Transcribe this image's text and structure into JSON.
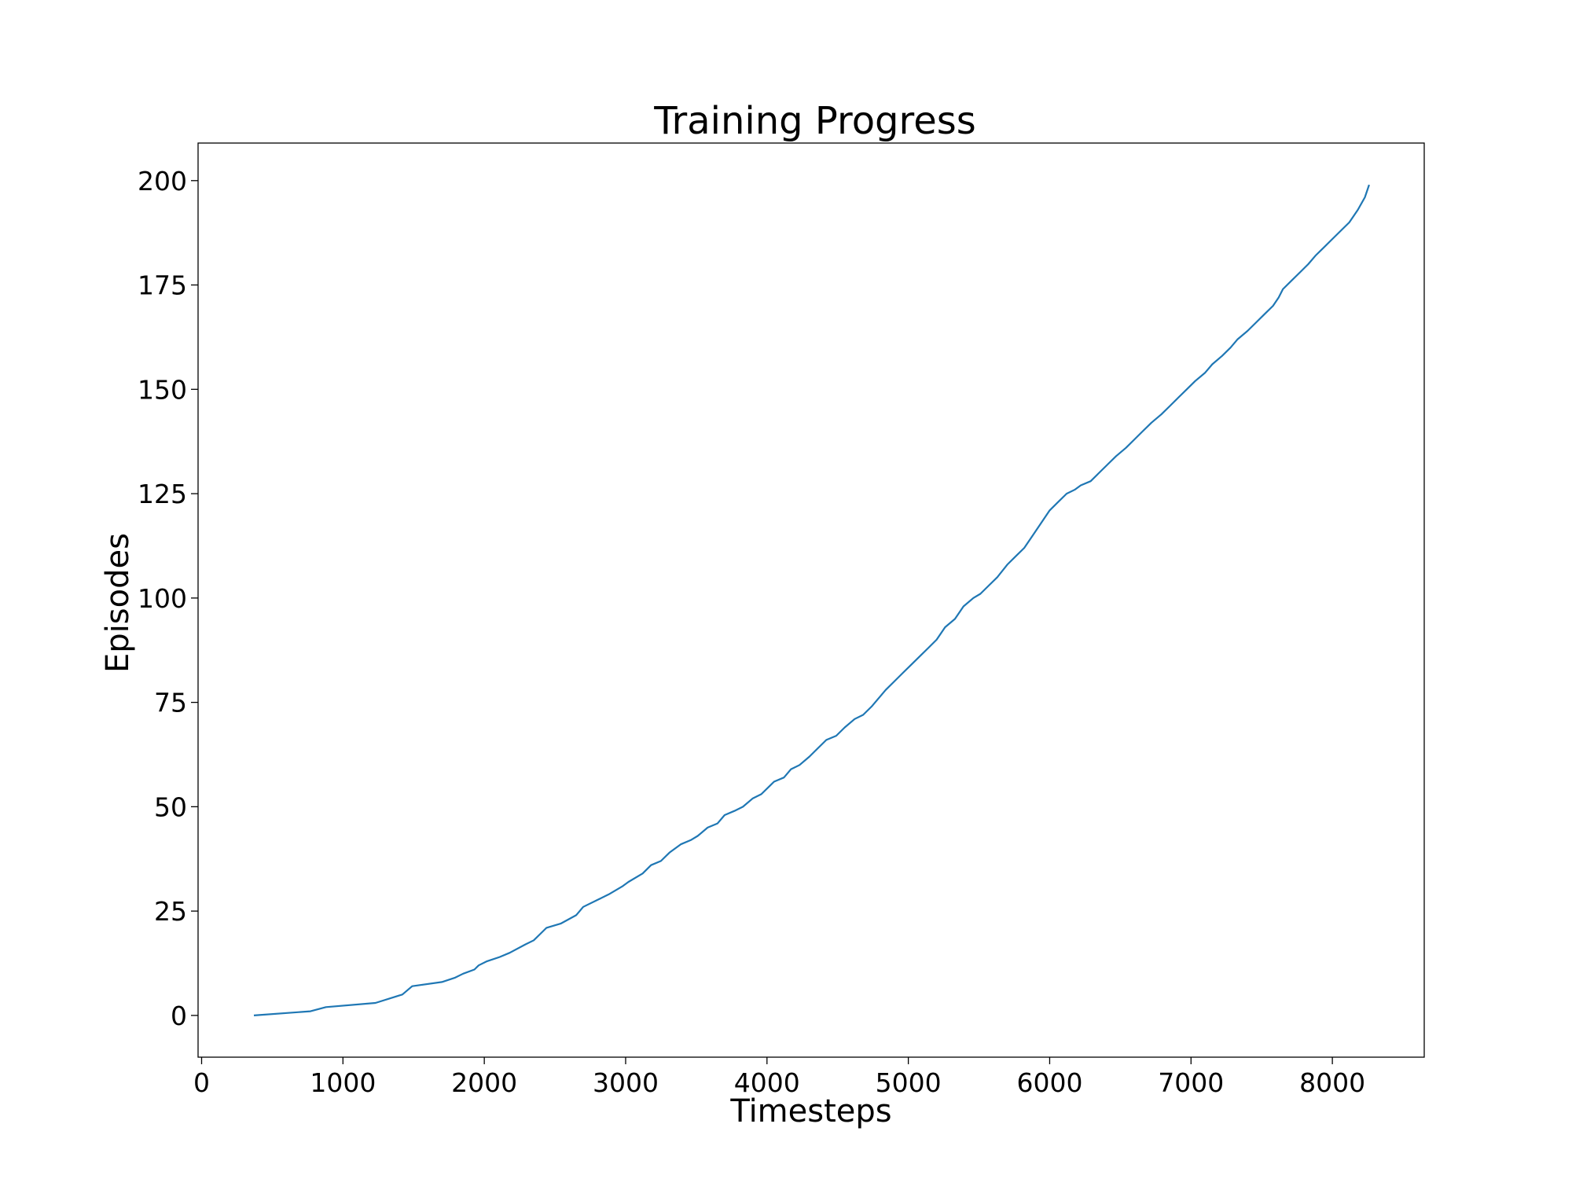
{
  "chart_data": {
    "type": "line",
    "title": "Training Progress",
    "xlabel": "Timesteps",
    "ylabel": "Episodes",
    "xlim": [
      -25,
      8650
    ],
    "ylim": [
      -10,
      209
    ],
    "xticks": [
      0,
      1000,
      2000,
      3000,
      4000,
      5000,
      6000,
      7000,
      8000
    ],
    "xtick_labels": [
      "0",
      "1000",
      "2000",
      "3000",
      "4000",
      "5000",
      "6000",
      "7000",
      "8000"
    ],
    "yticks": [
      0,
      25,
      50,
      75,
      100,
      125,
      150,
      175,
      200
    ],
    "ytick_labels": [
      "0",
      "25",
      "50",
      "75",
      "100",
      "125",
      "150",
      "175",
      "200"
    ],
    "grid": false,
    "legend": "none",
    "series": [
      {
        "color": "#1f77b4",
        "x": [
          370,
          770,
          880,
          1230,
          1420,
          1490,
          1700,
          1790,
          1850,
          1930,
          1960,
          2020,
          2110,
          2180,
          2290,
          2350,
          2380,
          2440,
          2540,
          2650,
          2700,
          2820,
          2880,
          2980,
          3020,
          3120,
          3180,
          3250,
          3310,
          3390,
          3460,
          3510,
          3580,
          3650,
          3700,
          3770,
          3830,
          3900,
          3960,
          4020,
          4050,
          4120,
          4170,
          4230,
          4300,
          4360,
          4420,
          4490,
          4550,
          4620,
          4680,
          4740,
          4790,
          4840,
          4900,
          4960,
          5020,
          5080,
          5140,
          5200,
          5260,
          5330,
          5390,
          5460,
          5510,
          5570,
          5630,
          5700,
          5760,
          5820,
          5880,
          5940,
          6000,
          6060,
          6120,
          6180,
          6220,
          6290,
          6350,
          6410,
          6470,
          6540,
          6600,
          6660,
          6720,
          6790,
          6850,
          6910,
          6970,
          7030,
          7100,
          7150,
          7220,
          7280,
          7330,
          7400,
          7460,
          7520,
          7580,
          7620,
          7650,
          7710,
          7770,
          7830,
          7880,
          7940,
          8000,
          8060,
          8120,
          8180,
          8230,
          8260
        ],
        "y": [
          0,
          1,
          2,
          3,
          5,
          7,
          8,
          9,
          10,
          11,
          12,
          13,
          14,
          15,
          17,
          18,
          19,
          21,
          22,
          24,
          26,
          28,
          29,
          31,
          32,
          34,
          36,
          37,
          39,
          41,
          42,
          43,
          45,
          46,
          48,
          49,
          50,
          52,
          53,
          55,
          56,
          57,
          59,
          60,
          62,
          64,
          66,
          67,
          69,
          71,
          72,
          74,
          76,
          78,
          80,
          82,
          84,
          86,
          88,
          90,
          93,
          95,
          98,
          100,
          101,
          103,
          105,
          108,
          110,
          112,
          115,
          118,
          121,
          123,
          125,
          126,
          127,
          128,
          130,
          132,
          134,
          136,
          138,
          140,
          142,
          144,
          146,
          148,
          150,
          152,
          154,
          156,
          158,
          160,
          162,
          164,
          166,
          168,
          170,
          172,
          174,
          176,
          178,
          180,
          182,
          184,
          186,
          188,
          190,
          193,
          196,
          199
        ]
      }
    ]
  }
}
